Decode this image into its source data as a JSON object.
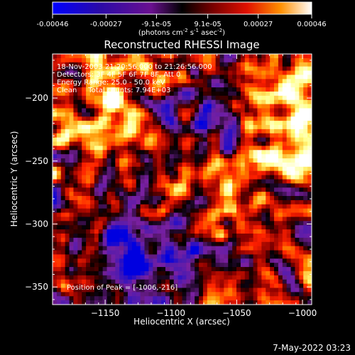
{
  "colorbar": {
    "tick_labels": [
      "-0.00046",
      "-0.00027",
      "-9.1e-05",
      "9.1e-05",
      "0.00027",
      "0.00046"
    ],
    "tick_values": [
      -0.00046,
      -0.00027,
      -9.1e-05,
      9.1e-05,
      0.00027,
      0.00046
    ],
    "units_label": "(photons cm",
    "units_exp1": "-2",
    "units_mid": " s",
    "units_exp2": "-1",
    "units_tail": " asec",
    "units_exp3": "-2",
    "units_close": ")",
    "range": [
      -0.00046,
      0.00046
    ]
  },
  "chart_data": {
    "type": "heatmap",
    "title": "Reconstructed RHESSI Image",
    "xlabel": "Heliocentric X (arcsec)",
    "ylabel": "Heliocentric Y (arcsec)",
    "xlim": [
      -1190,
      -993
    ],
    "ylim": [
      -364,
      -165
    ],
    "x_ticks": [
      -1150,
      -1100,
      -1050,
      -1000
    ],
    "x_tick_labels": [
      "−1150",
      "−1100",
      "−1050",
      "−1000"
    ],
    "y_ticks": [
      -200,
      -250,
      -300,
      -350
    ],
    "y_tick_labels": [
      "−200",
      "−250",
      "−300",
      "−350"
    ],
    "annotations": [
      "18-Nov-2003 21:20:56.000 to 21:26:56.000",
      "Detectors: 3F 4F 5F 6F 7F 8F, Att 0",
      "Energy Range: 25.0 - 50.0 keV",
      "Clean     Total counts: 7.94E+03"
    ],
    "peak_label": "Position of Peak = [-1006,-216]",
    "peak_position": [
      -1006,
      -216
    ],
    "colormap": [
      "#0000e0",
      "#4a1ab0",
      "#7a20a0",
      "#000000",
      "#8a0000",
      "#ff2000",
      "#ff9000",
      "#ffff80",
      "#ffffff"
    ]
  },
  "footer": {
    "date": "7-May-2022 03:23"
  }
}
